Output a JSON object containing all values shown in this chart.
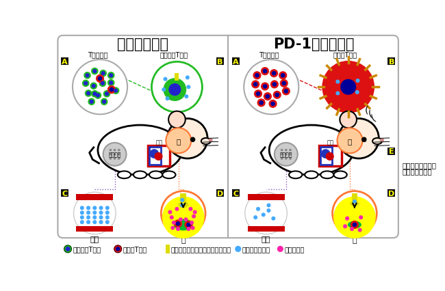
{
  "title_left": "野生型マウス",
  "title_right": "PD-1欠損マウス",
  "label_A_left_top": "T細胞集団",
  "label_B_left_top": "ナイーブT細胞",
  "label_A_right_top": "T細胞集団",
  "label_B_right_top": "活性化T細胞",
  "label_lymph": "リンパ節",
  "label_blood_box": "血液",
  "label_brain_circle": "脳",
  "label_C": "血液",
  "label_D": "脳",
  "label_E_line1": "不安様行動の亢進",
  "label_E_line2": "恐怖反応の増強",
  "legend_naive": "ナイーブT細胞",
  "legend_active": "活性化T細胞",
  "legend_transporter": "トリプトファントランスポーター",
  "legend_tryp": "トリプトファン",
  "legend_sero": "セロトニン",
  "bg_color": "#ffffff",
  "naive_outer": "#22bb22",
  "naive_inner": "#2222cc",
  "active_outer": "#dd1111",
  "active_inner": "#000099",
  "tryptophan_color": "#44aaff",
  "serotonin_color": "#ff22aa",
  "transporter_color": "#dddd00",
  "blood_red": "#cc0000",
  "brain_peach": "#ffcc99",
  "yellow_area": "#ffff00",
  "green_cell_color": "#00bb33",
  "spike_color": "#cc8800",
  "border_color": "#888888",
  "lymph_fill": "#cccccc",
  "blue_box": "#2233bb",
  "dotted_purple": "#8855bb",
  "dotted_orange": "#ff7733"
}
